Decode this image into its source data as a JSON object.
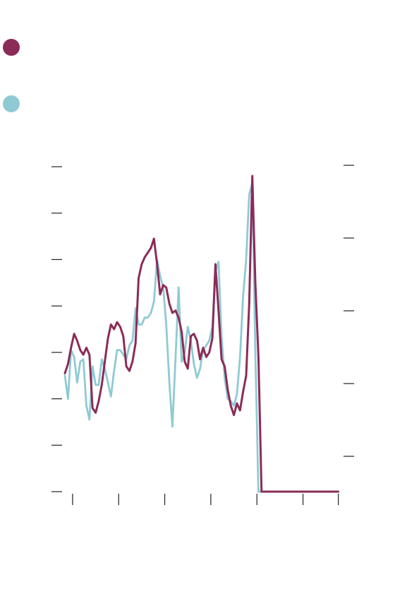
{
  "colors": {
    "series_1": "#8b2c58",
    "series_2": "#8fcad4",
    "axis": "#222222",
    "background": "#ffffff"
  },
  "chart_data": {
    "type": "line",
    "title": "",
    "xlabel": "",
    "ylabel_left": "",
    "ylabel_right": "",
    "grid": false,
    "legend_placement": "top-left",
    "tick_labels": "none",
    "xlim": [
      0,
      180
    ],
    "x_tick_values": [
      5,
      35,
      65,
      95,
      125,
      155,
      178
    ],
    "y_left": {
      "ylim": [
        0,
        7
      ],
      "tick_values": [
        0,
        1,
        2,
        3,
        4,
        5,
        6,
        7
      ]
    },
    "y_right": {
      "ylim": [
        0,
        4.5
      ],
      "tick_values": [
        0.5,
        1.5,
        2.5,
        3.5,
        4.5
      ]
    },
    "series": [
      {
        "name": "",
        "axis": "left",
        "color": "#8b2c58",
        "x": [
          0,
          2,
          4,
          6,
          8,
          10,
          12,
          14,
          16,
          18,
          20,
          22,
          24,
          26,
          28,
          30,
          32,
          34,
          36,
          38,
          40,
          42,
          44,
          46,
          48,
          50,
          52,
          54,
          56,
          58,
          60,
          62,
          64,
          66,
          68,
          70,
          72,
          74,
          76,
          78,
          80,
          82,
          84,
          86,
          88,
          90,
          92,
          94,
          96,
          98,
          100,
          102,
          104,
          106,
          108,
          110,
          112,
          114,
          116,
          118,
          120,
          122,
          124,
          126,
          128,
          130,
          132,
          134,
          136,
          138,
          140,
          142,
          144,
          146,
          148,
          150,
          152,
          154,
          156,
          158,
          160,
          162,
          164,
          166,
          168,
          170,
          172,
          174,
          176,
          178,
          180
        ],
        "y": [
          2.55,
          2.75,
          3.1,
          3.4,
          3.25,
          3.05,
          2.95,
          3.1,
          2.95,
          1.8,
          1.7,
          1.95,
          2.3,
          2.8,
          3.3,
          3.6,
          3.5,
          3.65,
          3.55,
          3.35,
          2.7,
          2.6,
          2.8,
          3.2,
          4.6,
          4.9,
          5.05,
          5.15,
          5.25,
          5.45,
          4.9,
          4.25,
          4.45,
          4.4,
          4.05,
          3.85,
          3.9,
          3.75,
          3.45,
          2.8,
          2.65,
          3.35,
          3.4,
          3.25,
          2.85,
          3.1,
          2.9,
          3.0,
          3.3,
          4.9,
          3.9,
          2.85,
          2.7,
          2.2,
          1.85,
          1.65,
          1.9,
          1.75,
          2.15,
          2.5,
          4.05,
          6.8,
          4.5,
          2.9,
          0.0,
          0.0,
          0.0,
          0.0,
          0.0,
          0.0,
          0.0,
          0.0,
          0.0,
          0.0,
          0.0,
          0.0,
          0.0,
          0.0,
          0.0,
          0.0,
          0.0,
          0.0,
          0.0,
          0.0,
          0.0,
          0.0,
          0.0,
          0.0,
          0.0,
          0.0,
          0.0
        ]
      },
      {
        "name": "",
        "axis": "left",
        "color": "#8fcad4",
        "x": [
          0,
          2,
          4,
          6,
          8,
          10,
          12,
          14,
          16,
          18,
          20,
          22,
          24,
          26,
          28,
          30,
          32,
          34,
          36,
          38,
          40,
          42,
          44,
          46,
          48,
          50,
          52,
          54,
          56,
          58,
          60,
          62,
          64,
          66,
          68,
          70,
          72,
          74,
          76,
          78,
          80,
          82,
          84,
          86,
          88,
          90,
          92,
          94,
          96,
          98,
          100,
          102,
          104,
          106,
          108,
          110,
          112,
          114,
          116,
          118,
          120,
          122,
          124,
          126,
          128,
          130,
          132,
          134,
          136,
          138,
          140,
          142,
          144,
          146,
          148,
          150,
          152,
          154,
          156,
          158,
          160,
          162,
          164,
          166,
          168,
          170,
          172,
          174,
          176,
          178,
          180
        ],
        "y": [
          2.5,
          2.0,
          3.05,
          2.9,
          2.35,
          2.8,
          2.85,
          1.85,
          1.55,
          2.7,
          2.3,
          2.3,
          2.85,
          2.65,
          2.35,
          2.05,
          2.6,
          3.05,
          3.05,
          2.95,
          2.85,
          3.15,
          3.25,
          3.95,
          3.6,
          3.6,
          3.75,
          3.75,
          3.85,
          4.1,
          5.0,
          4.65,
          4.4,
          3.6,
          2.35,
          1.4,
          2.85,
          4.4,
          2.8,
          3.0,
          3.55,
          3.25,
          2.75,
          2.45,
          2.65,
          3.05,
          3.15,
          3.25,
          3.55,
          4.75,
          4.95,
          3.35,
          2.45,
          2.0,
          1.95,
          1.85,
          2.1,
          2.9,
          4.2,
          5.0,
          6.4,
          6.65,
          3.0,
          0.0,
          0.0,
          0.0,
          0.0,
          0.0,
          0.0,
          0.0,
          0.0,
          0.0,
          0.0,
          0.0,
          0.0,
          0.0,
          0.0,
          0.0,
          0.0,
          0.0,
          0.0,
          0.0,
          0.0,
          0.0,
          0.0,
          0.0,
          0.0,
          0.0,
          0.0,
          0.0,
          0.0
        ]
      }
    ]
  }
}
